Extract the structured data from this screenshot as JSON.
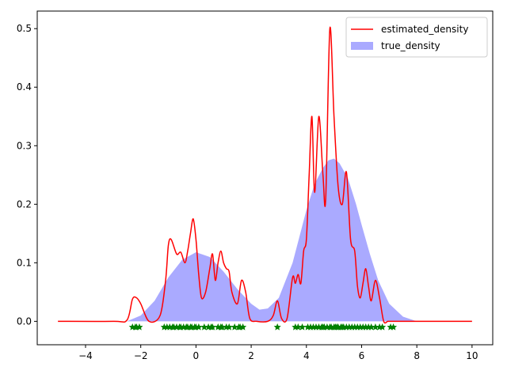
{
  "chart_data": {
    "type": "area",
    "title": "",
    "xlabel": "",
    "ylabel": "",
    "xlim": [
      -5.75,
      10.75
    ],
    "ylim": [
      -0.04,
      0.53
    ],
    "xticks": [
      -4,
      -2,
      0,
      2,
      4,
      6,
      8,
      10
    ],
    "yticks": [
      0.0,
      0.1,
      0.2,
      0.3,
      0.4,
      0.5
    ],
    "xtick_labels": [
      "−4",
      "−2",
      "0",
      "2",
      "4",
      "6",
      "8",
      "10"
    ],
    "ytick_labels": [
      "0.0",
      "0.1",
      "0.2",
      "0.3",
      "0.4",
      "0.5"
    ],
    "grid": false,
    "legend_position": "top-right",
    "series": [
      {
        "name": "estimated_density",
        "kind": "line",
        "color": "#ff0000",
        "x": [
          -5,
          -3.0,
          -2.5,
          -2.3,
          -2.15,
          -2.0,
          -1.7,
          -1.3,
          -1.1,
          -1.0,
          -0.9,
          -0.7,
          -0.55,
          -0.4,
          -0.3,
          -0.2,
          -0.1,
          0.0,
          0.1,
          0.2,
          0.35,
          0.5,
          0.6,
          0.7,
          0.8,
          0.9,
          1.0,
          1.1,
          1.2,
          1.3,
          1.5,
          1.65,
          1.8,
          1.95,
          2.2,
          2.6,
          2.8,
          2.95,
          3.1,
          3.3,
          3.5,
          3.6,
          3.7,
          3.8,
          3.9,
          4.0,
          4.1,
          4.2,
          4.3,
          4.45,
          4.6,
          4.7,
          4.85,
          5.0,
          5.15,
          5.3,
          5.45,
          5.6,
          5.75,
          5.85,
          5.95,
          6.05,
          6.15,
          6.25,
          6.35,
          6.5,
          6.65,
          6.8,
          6.95,
          7.1,
          7.25,
          7.5,
          8.0,
          10
        ],
        "y": [
          0.0,
          0.0,
          0.002,
          0.038,
          0.04,
          0.03,
          0.0,
          0.01,
          0.07,
          0.13,
          0.14,
          0.115,
          0.118,
          0.1,
          0.12,
          0.15,
          0.175,
          0.14,
          0.08,
          0.04,
          0.05,
          0.09,
          0.115,
          0.07,
          0.1,
          0.12,
          0.1,
          0.09,
          0.085,
          0.05,
          0.03,
          0.07,
          0.05,
          0.005,
          0.0,
          0.0,
          0.01,
          0.035,
          0.005,
          0.005,
          0.075,
          0.065,
          0.08,
          0.065,
          0.12,
          0.14,
          0.25,
          0.35,
          0.22,
          0.35,
          0.25,
          0.21,
          0.5,
          0.35,
          0.23,
          0.2,
          0.255,
          0.14,
          0.12,
          0.06,
          0.04,
          0.065,
          0.09,
          0.06,
          0.035,
          0.07,
          0.04,
          0.0,
          0.0,
          0.0,
          0.0,
          0.0,
          0.0,
          0.0
        ]
      },
      {
        "name": "true_density",
        "kind": "area",
        "color": "#aaaaff",
        "x": [
          -2.5,
          -2.0,
          -1.5,
          -1.0,
          -0.5,
          0.0,
          0.5,
          1.0,
          1.5,
          2.0,
          2.3,
          2.6,
          3.0,
          3.5,
          4.0,
          4.3,
          4.6,
          4.8,
          5.0,
          5.2,
          5.5,
          5.8,
          6.0,
          6.3,
          6.6,
          7.0,
          7.5,
          8.0
        ],
        "y": [
          0.0,
          0.01,
          0.035,
          0.075,
          0.105,
          0.118,
          0.11,
          0.085,
          0.055,
          0.03,
          0.02,
          0.022,
          0.04,
          0.1,
          0.19,
          0.235,
          0.262,
          0.275,
          0.278,
          0.27,
          0.245,
          0.2,
          0.165,
          0.115,
          0.07,
          0.03,
          0.008,
          0.0
        ]
      },
      {
        "name": "",
        "kind": "scatter",
        "color": "#008000",
        "marker": "star",
        "y_value": -0.01,
        "x": [
          -2.3,
          -2.2,
          -2.15,
          -2.05,
          -1.15,
          -1.05,
          -0.95,
          -0.85,
          -0.8,
          -0.7,
          -0.6,
          -0.55,
          -0.45,
          -0.35,
          -0.3,
          -0.2,
          -0.15,
          -0.05,
          0.0,
          0.1,
          0.3,
          0.45,
          0.55,
          0.6,
          0.8,
          0.9,
          0.95,
          1.1,
          1.2,
          1.4,
          1.55,
          1.6,
          1.7,
          2.95,
          3.6,
          3.7,
          3.85,
          4.05,
          4.15,
          4.25,
          4.35,
          4.45,
          4.55,
          4.6,
          4.65,
          4.75,
          4.85,
          4.9,
          5.0,
          5.05,
          5.1,
          5.15,
          5.25,
          5.3,
          5.35,
          5.45,
          5.55,
          5.65,
          5.75,
          5.85,
          5.95,
          6.05,
          6.15,
          6.25,
          6.35,
          6.5,
          6.65,
          6.75,
          7.05,
          7.15
        ]
      }
    ]
  }
}
